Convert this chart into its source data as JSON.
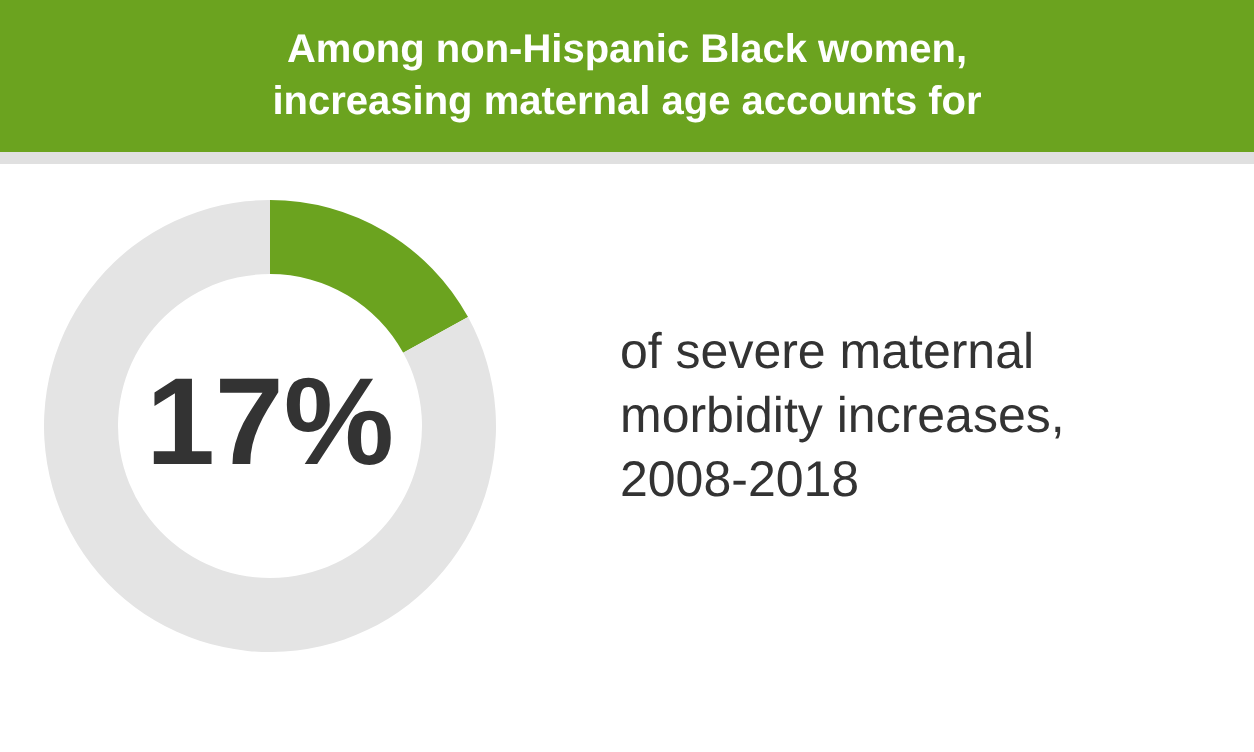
{
  "chart_data": {
    "type": "donut",
    "title": "Among non-Hispanic Black women, increasing maternal age accounts for",
    "categories": [
      null,
      null
    ],
    "values": [
      17,
      83
    ],
    "colors": [
      "#6ba31f",
      "#e4e4e4"
    ],
    "value_labels": [
      "17%",
      null
    ],
    "annotations": [
      "of severe maternal morbidity increases, 2008-2018"
    ]
  }
}
